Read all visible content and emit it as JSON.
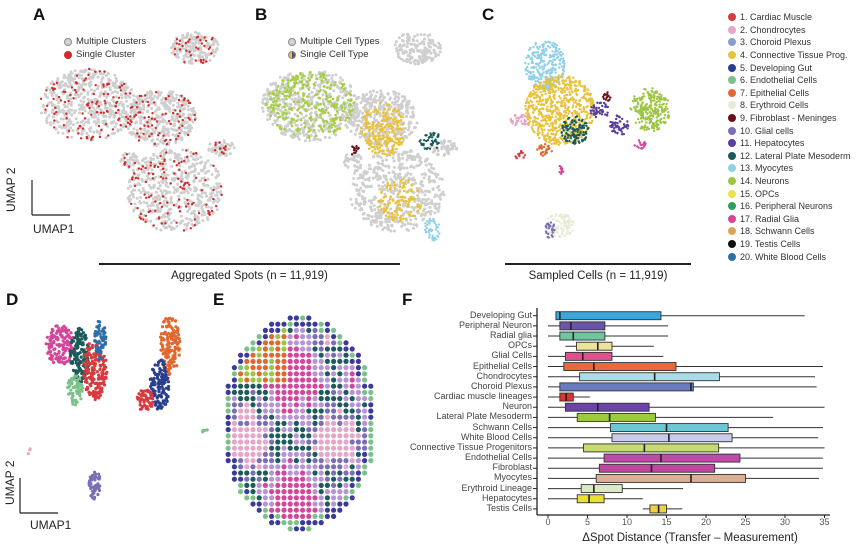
{
  "panels": {
    "A": "A",
    "B": "B",
    "C": "C",
    "D": "D",
    "E": "E",
    "F": "F"
  },
  "legend_a": [
    {
      "label": "Multiple Clusters",
      "color": "#d3d3d3"
    },
    {
      "label": "Single Cluster",
      "color": "#d42a2a"
    }
  ],
  "legend_b": [
    {
      "label": "Multiple Cell Types",
      "color": "#d3d3d3"
    },
    {
      "label": "Single Cell Type",
      "color": "#555577"
    }
  ],
  "umap_axes": {
    "x": "UMAP1",
    "y": "UMAP 2"
  },
  "captions": {
    "aggregated": "Aggregated Spots (n = 11,919)",
    "sampled": "Sampled Cells (n = 11,919)"
  },
  "cell_types": [
    {
      "label": "1. Cardiac Muscle",
      "color": "#d83a3e"
    },
    {
      "label": "2. Chondrocytes",
      "color": "#e6a6c8"
    },
    {
      "label": "3. Choroid Plexus",
      "color": "#8a9cc8"
    },
    {
      "label": "4. Connective Tissue Prog.",
      "color": "#e8c23a"
    },
    {
      "label": "5. Developing Gut",
      "color": "#2b3f8f"
    },
    {
      "label": "6. Endothelial Cells",
      "color": "#7cc08a"
    },
    {
      "label": "7. Epithelial Cells",
      "color": "#e0682e"
    },
    {
      "label": "8. Erythroid Cells",
      "color": "#e6ebd6"
    },
    {
      "label": "9. Fibroblast - Meninges",
      "color": "#6b0f1a"
    },
    {
      "label": "10. Glial cells",
      "color": "#7a6fb5"
    },
    {
      "label": "11. Hepatocytes",
      "color": "#5a3f9e"
    },
    {
      "label": "12. Lateral Plate Mesoderm",
      "color": "#1d5a5a"
    },
    {
      "label": "13. Myocytes",
      "color": "#8fd0e6"
    },
    {
      "label": "14. Neurons",
      "color": "#9dc443"
    },
    {
      "label": "15. OPCs",
      "color": "#e6e44a"
    },
    {
      "label": "16. Peripheral Neurons",
      "color": "#2e9e5e"
    },
    {
      "label": "17. Radial Glia",
      "color": "#d2479a"
    },
    {
      "label": "18. Schwann Cells",
      "color": "#d9a45a"
    },
    {
      "label": "19. Testis Cells",
      "color": "#111111"
    },
    {
      "label": "20. White Blood Cells",
      "color": "#2e6fa8"
    }
  ],
  "chart_data": {
    "type": "box",
    "xlabel": "ΔSpot Distance (Transfer – Measurement)",
    "xlim": [
      0,
      35
    ],
    "xticks": [
      0,
      5,
      10,
      15,
      20,
      25,
      30,
      35
    ],
    "grid": false,
    "series": [
      {
        "name": "Developing Gut",
        "color": "#3aa6dc",
        "min": 1,
        "q1": 1.0,
        "median": 1.5,
        "q3": 14.3,
        "max": 32.5
      },
      {
        "name": "Peripheral Neuron",
        "color": "#6a55a8",
        "min": 0,
        "q1": 1.5,
        "median": 2.9,
        "q3": 7.2,
        "max": 15.2
      },
      {
        "name": "Radial glia",
        "color": "#6cc7a0",
        "min": 0,
        "q1": 1.5,
        "median": 3.2,
        "q3": 7.2,
        "max": 15.2
      },
      {
        "name": "OPCs",
        "color": "#ece39a",
        "min": 2.2,
        "q1": 3.6,
        "median": 6.3,
        "q3": 8.1,
        "max": 13.4
      },
      {
        "name": "Glial Cells",
        "color": "#e0508c",
        "min": 0,
        "q1": 2.2,
        "median": 4.4,
        "q3": 8.1,
        "max": 14.6
      },
      {
        "name": "Epithelial Cells",
        "color": "#e8693a",
        "min": 0,
        "q1": 2.0,
        "median": 5.8,
        "q3": 16.2,
        "max": 34.8
      },
      {
        "name": "Chondrocytes",
        "color": "#a9dce6",
        "min": 0,
        "q1": 4.0,
        "median": 13.5,
        "q3": 21.7,
        "max": 33.8
      },
      {
        "name": "Choroid Plexus",
        "color": "#6a7cc0",
        "min": 0,
        "q1": 1.5,
        "median": 18.1,
        "q3": 18.4,
        "max": 34.0
      },
      {
        "name": "Cardiac muscle lineages",
        "color": "#e03030",
        "min": 0,
        "q1": 1.5,
        "median": 2.3,
        "q3": 3.2,
        "max": 5.3
      },
      {
        "name": "Neuron",
        "color": "#6a44a8",
        "min": 0,
        "q1": 2.2,
        "median": 6.3,
        "q3": 12.8,
        "max": 35.0
      },
      {
        "name": "Lateral Plate Mesoderm",
        "color": "#9ccc3c",
        "min": 0,
        "q1": 3.7,
        "median": 7.8,
        "q3": 13.6,
        "max": 28.5
      },
      {
        "name": "Schwann Cells",
        "color": "#6cc8d6",
        "min": 0,
        "q1": 7.9,
        "median": 15.0,
        "q3": 22.8,
        "max": 34.8
      },
      {
        "name": "White Blood Cells",
        "color": "#c8cce6",
        "min": 0,
        "q1": 8.1,
        "median": 15.3,
        "q3": 23.3,
        "max": 34.2
      },
      {
        "name": "Connective Tissue Progenitors",
        "color": "#c6dc6c",
        "min": 0,
        "q1": 4.5,
        "median": 12.2,
        "q3": 21.6,
        "max": 35.0
      },
      {
        "name": "Endothelial Cells",
        "color": "#c04aa8",
        "min": 0,
        "q1": 7.1,
        "median": 14.3,
        "q3": 24.3,
        "max": 34.8
      },
      {
        "name": "Fibroblast",
        "color": "#c046a0",
        "min": 0,
        "q1": 6.5,
        "median": 13.1,
        "q3": 21.1,
        "max": 34.8
      },
      {
        "name": "Myocytes",
        "color": "#dcae96",
        "min": 0,
        "q1": 6.1,
        "median": 18.1,
        "q3": 25.0,
        "max": 34.3
      },
      {
        "name": "Erythroid Lineage",
        "color": "#dde8c8",
        "min": 0,
        "q1": 4.2,
        "median": 5.8,
        "q3": 9.4,
        "max": 17.1
      },
      {
        "name": "Hepatocytes",
        "color": "#e8e03a",
        "min": 0,
        "q1": 3.7,
        "median": 5.2,
        "q3": 7.1,
        "max": 12.0
      },
      {
        "name": "Testis Cells",
        "color": "#f0d040",
        "min": 12,
        "q1": 12.9,
        "median": 14.0,
        "q3": 15.0,
        "max": 17.0
      }
    ]
  }
}
